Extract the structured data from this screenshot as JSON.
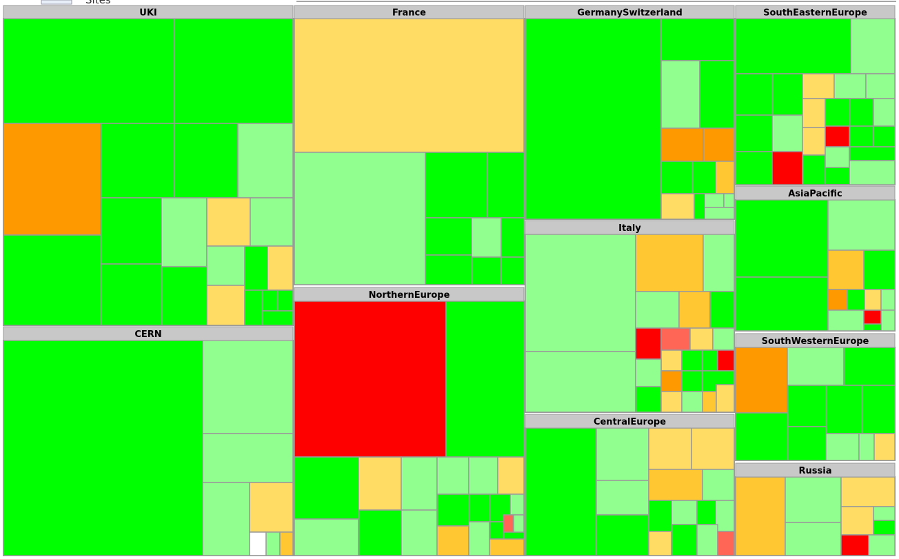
{
  "toolbar": {
    "label": "Sites"
  },
  "regions": [
    {
      "name": "UKI"
    },
    {
      "name": "CERN"
    },
    {
      "name": "France"
    },
    {
      "name": "NorthernEurope"
    },
    {
      "name": "GermanySwitzerland"
    },
    {
      "name": "Italy"
    },
    {
      "name": "CentralEurope"
    },
    {
      "name": "SouthEasternEurope"
    },
    {
      "name": "AsiaPacific"
    },
    {
      "name": "SouthWesternEurope"
    },
    {
      "name": "Russia"
    }
  ]
}
